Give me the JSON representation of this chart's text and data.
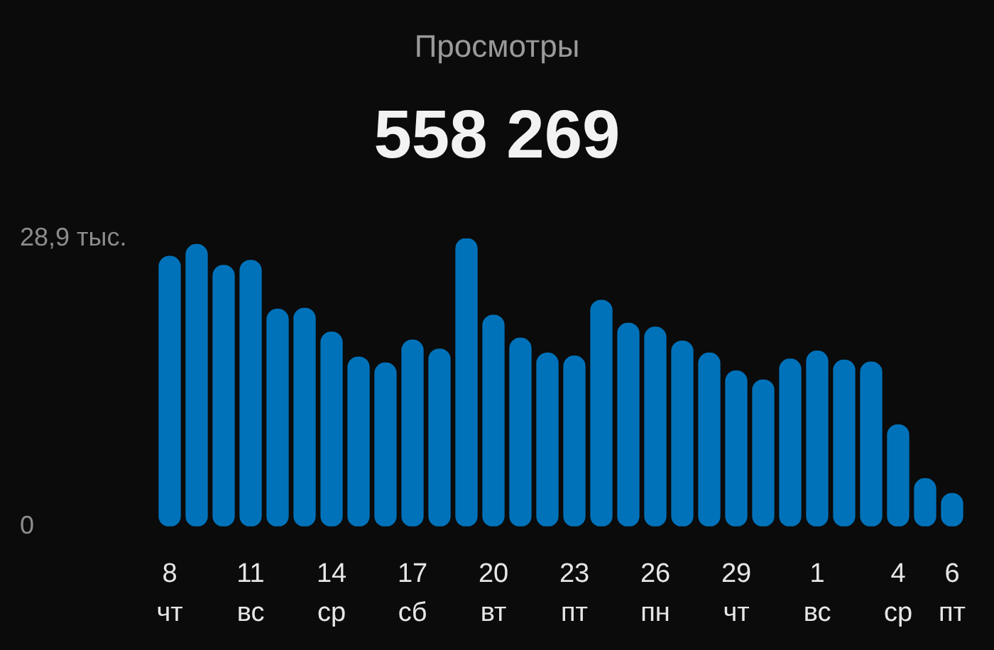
{
  "chart_data": {
    "type": "bar",
    "title": "Просмотры",
    "subtitle": "558 269",
    "categories": [
      "8\nчт",
      null,
      null,
      "11\nвс",
      null,
      null,
      "14\nср",
      null,
      null,
      "17\nсб",
      null,
      null,
      "20\nвт",
      null,
      null,
      "23\nпт",
      null,
      null,
      "26\nпн",
      null,
      null,
      "29\nчт",
      null,
      null,
      "1\nвс",
      null,
      null,
      "4\nср",
      null,
      "6\nпт"
    ],
    "values": [
      27.1,
      28.3,
      26.2,
      26.7,
      21.8,
      21.9,
      19.5,
      17.0,
      16.4,
      18.7,
      17.8,
      28.9,
      21.2,
      18.9,
      17.4,
      17.1,
      22.7,
      20.4,
      20.0,
      18.6,
      17.4,
      15.6,
      14.7,
      16.8,
      17.6,
      16.7,
      16.5,
      10.2,
      4.8,
      3.3
    ],
    "color": "#0072ba",
    "ylim": [
      0,
      28.9
    ],
    "yticks": [
      0,
      {
        "value": 28.9,
        "label": "28,9 тыс."
      }
    ]
  }
}
